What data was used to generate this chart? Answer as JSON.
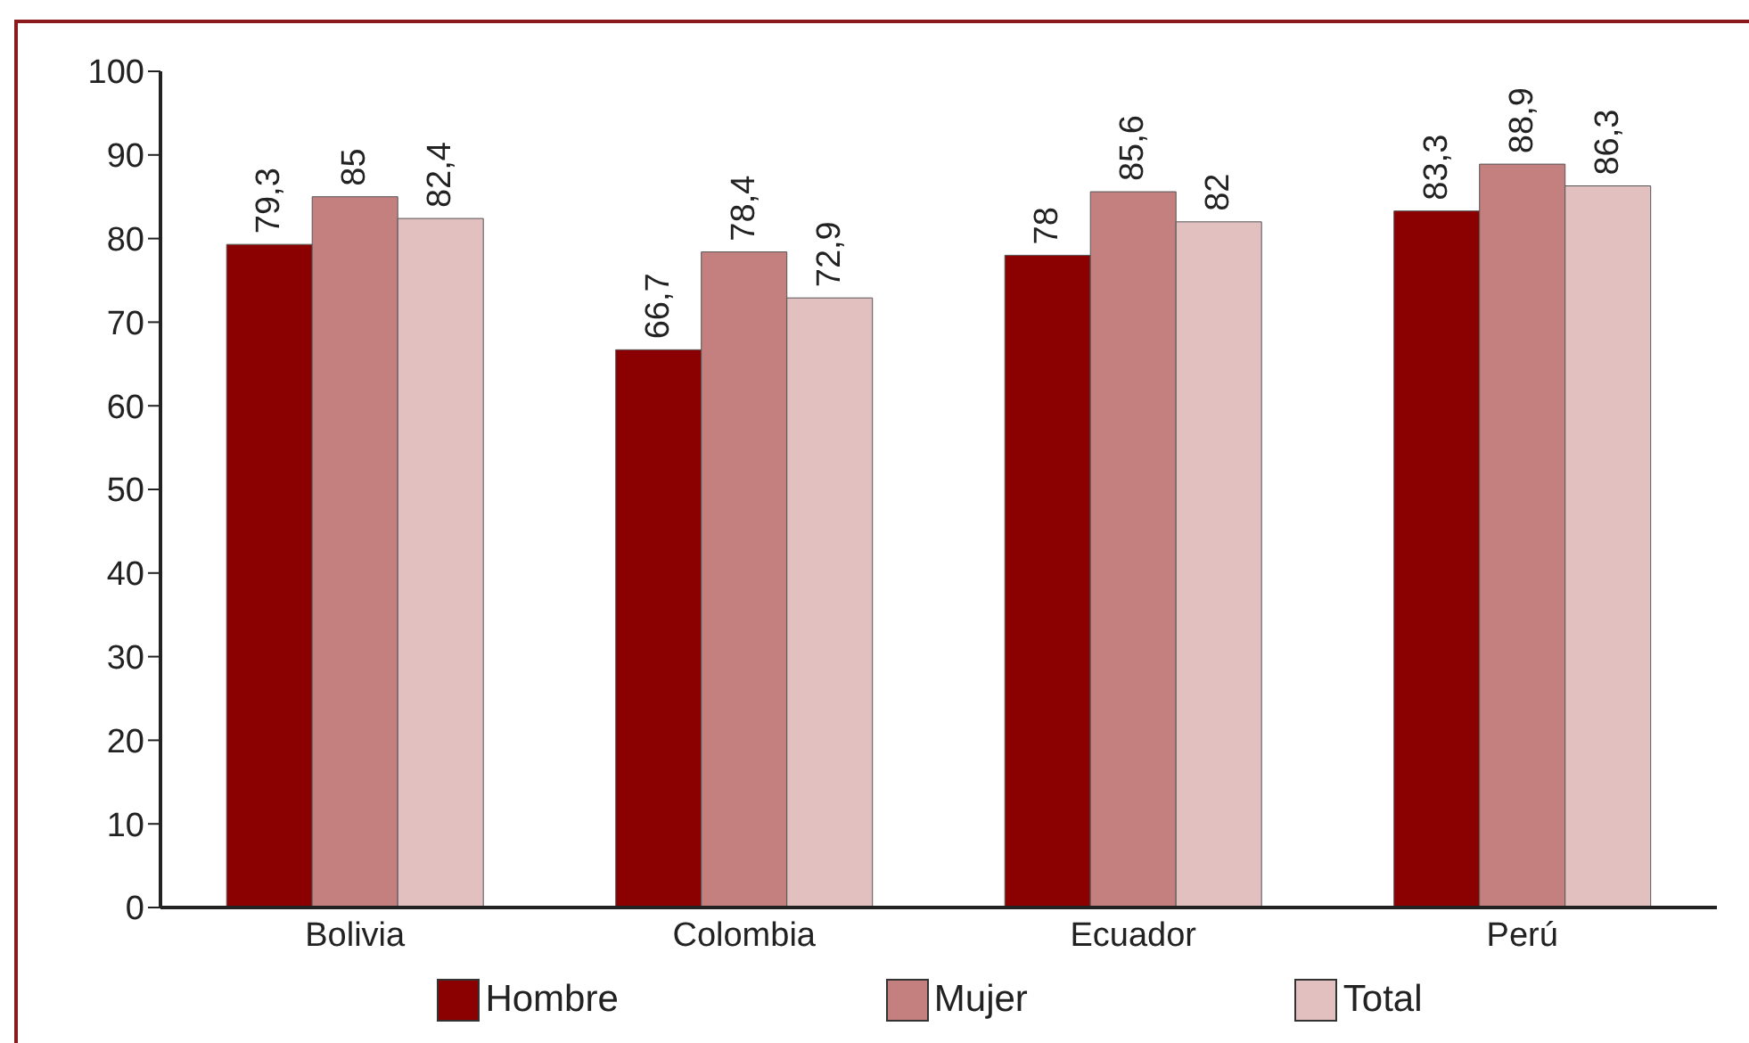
{
  "chart_data": {
    "type": "bar",
    "categories": [
      "Bolivia",
      "Colombia",
      "Ecuador",
      "Perú"
    ],
    "series": [
      {
        "name": "Hombre",
        "color": "#8b0000",
        "values": [
          79.3,
          66.7,
          78,
          83.3
        ],
        "value_labels": [
          "79,3",
          "66,7",
          "78",
          "83,3"
        ]
      },
      {
        "name": "Mujer",
        "color": "#c47f7f",
        "values": [
          85,
          78.4,
          85.6,
          88.9
        ],
        "value_labels": [
          "85",
          "78,4",
          "85,6",
          "88,9"
        ]
      },
      {
        "name": "Total",
        "color": "#e2c0c0",
        "values": [
          82.4,
          72.9,
          82,
          86.3
        ],
        "value_labels": [
          "82,4",
          "72,9",
          "82",
          "86,3"
        ]
      }
    ],
    "ylim": [
      0,
      100
    ],
    "yticks": [
      0,
      10,
      20,
      30,
      40,
      50,
      60,
      70,
      80,
      90,
      100
    ],
    "grid": false,
    "legend": "bottom"
  }
}
